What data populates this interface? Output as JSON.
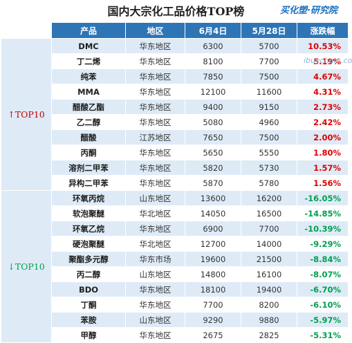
{
  "title": "国内大宗化工品价格TOP榜",
  "logo_text": "买化塑·研究院",
  "watermark": "ibuychem.com",
  "headers": [
    "产品",
    "地区",
    "6月4日",
    "5月28日",
    "涨跌幅"
  ],
  "groups": [
    {
      "label": "↑TOP10",
      "direction": "up"
    },
    {
      "label": "↓TOP10",
      "direction": "down"
    }
  ],
  "rows_up": [
    {
      "product": "DMC",
      "region": "华东地区",
      "jun4": "6300",
      "may28": "5700",
      "change": "10.53%"
    },
    {
      "product": "丁二烯",
      "region": "华东地区",
      "jun4": "8100",
      "may28": "7700",
      "change": "5.19%"
    },
    {
      "product": "纯苯",
      "region": "华东地区",
      "jun4": "7850",
      "may28": "7500",
      "change": "4.67%"
    },
    {
      "product": "MMA",
      "region": "华东地区",
      "jun4": "12100",
      "may28": "11600",
      "change": "4.31%"
    },
    {
      "product": "醋酸乙酯",
      "region": "华东地区",
      "jun4": "9400",
      "may28": "9150",
      "change": "2.73%"
    },
    {
      "product": "乙二醇",
      "region": "华东地区",
      "jun4": "5080",
      "may28": "4960",
      "change": "2.42%"
    },
    {
      "product": "醋酸",
      "region": "江苏地区",
      "jun4": "7650",
      "may28": "7500",
      "change": "2.00%"
    },
    {
      "product": "丙酮",
      "region": "华东地区",
      "jun4": "5650",
      "may28": "5550",
      "change": "1.80%"
    },
    {
      "product": "溶剂二甲苯",
      "region": "华东地区",
      "jun4": "5820",
      "may28": "5730",
      "change": "1.57%"
    },
    {
      "product": "异构二甲苯",
      "region": "华东地区",
      "jun4": "5870",
      "may28": "5780",
      "change": "1.56%"
    }
  ],
  "rows_down": [
    {
      "product": "环氧丙烷",
      "region": "山东地区",
      "jun4": "13600",
      "may28": "16200",
      "change": "-16.05%"
    },
    {
      "product": "软泡聚醚",
      "region": "华北地区",
      "jun4": "14050",
      "may28": "16500",
      "change": "-14.85%"
    },
    {
      "product": "环氧乙烷",
      "region": "华东地区",
      "jun4": "6900",
      "may28": "7700",
      "change": "-10.39%"
    },
    {
      "product": "硬泡聚醚",
      "region": "华北地区",
      "jun4": "12700",
      "may28": "14000",
      "change": "-9.29%"
    },
    {
      "product": "聚酯多元醇",
      "region": "华东市场",
      "jun4": "19600",
      "may28": "21500",
      "change": "-8.84%"
    },
    {
      "product": "丙二醇",
      "region": "山东地区",
      "jun4": "14800",
      "may28": "16100",
      "change": "-8.07%"
    },
    {
      "product": "BDO",
      "region": "华东地区",
      "jun4": "18100",
      "may28": "19400",
      "change": "-6.70%"
    },
    {
      "product": "丁酮",
      "region": "华东地区",
      "jun4": "7700",
      "may28": "8200",
      "change": "-6.10%"
    },
    {
      "product": "苯胺",
      "region": "山东地区",
      "jun4": "9290",
      "may28": "9880",
      "change": "-5.97%"
    },
    {
      "product": "甲醇",
      "region": "华东地区",
      "jun4": "2675",
      "may28": "2825",
      "change": "-5.31%"
    }
  ]
}
